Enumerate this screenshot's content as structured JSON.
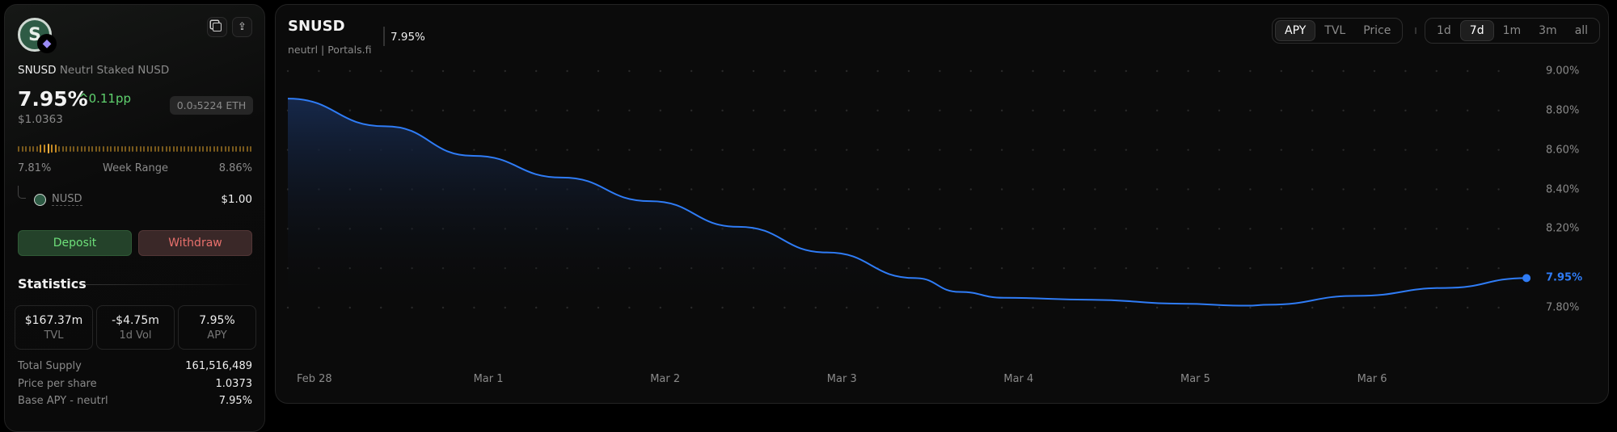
{
  "sidebar": {
    "symbol": "SNUSD",
    "name": "Neutrl Staked NUSD",
    "apy": "7.95%",
    "apy_change": "0.11pp",
    "price": "$1.0363",
    "eth_price": "0.0₃5224 ETH",
    "week_range": {
      "low": "7.81%",
      "label": "Week Range",
      "high": "8.86%",
      "current_fraction": 0.13
    },
    "underlying": {
      "symbol": "NUSD",
      "price": "$1.00"
    },
    "deposit_label": "Deposit",
    "withdraw_label": "Withdraw",
    "statistics_title": "Statistics",
    "stats": [
      {
        "value": "$167.37m",
        "label": "TVL"
      },
      {
        "value": "-$4.75m",
        "label": "1d Vol"
      },
      {
        "value": "7.95%",
        "label": "APY"
      }
    ],
    "rows": [
      {
        "key": "Total Supply",
        "value": "161,516,489"
      },
      {
        "key": "Price per share",
        "value": "1.0373"
      },
      {
        "key": "Base APY - neutrl",
        "value": "7.95%"
      }
    ],
    "icons": [
      "token-logo",
      "ethereum-icon",
      "copy-icon",
      "share-icon",
      "chevron-up-icon"
    ],
    "colors": {
      "up": "#5fd16e",
      "deposit_bg": "#24422a",
      "withdraw_bg": "#3d2a2a",
      "withdraw_text": "#e8706c",
      "range": "#c58a22"
    }
  },
  "chart_header": {
    "title": "SNUSD",
    "subtitle": "neutrl | Portals.fi",
    "current_value": "7.95%",
    "metric_tabs": [
      "APY",
      "TVL",
      "Price"
    ],
    "active_metric": "APY",
    "range_tabs": [
      "1d",
      "7d",
      "1m",
      "3m",
      "all"
    ],
    "active_range": "7d"
  },
  "chart_data": {
    "type": "area",
    "series": [
      {
        "x": [
          "Feb 28 00:00",
          "Feb 28 12:00",
          "Mar 1 00:00",
          "Mar 1 12:00",
          "Mar 2 00:00",
          "Mar 2 12:00",
          "Mar 3 00:00",
          "Mar 3 12:00",
          "Mar 3 18:00",
          "Mar 4 00:00",
          "Mar 4 12:00",
          "Mar 5 00:00",
          "Mar 5 09:00",
          "Mar 5 12:00",
          "Mar 6 00:00",
          "Mar 6 12:00",
          "Mar 6 23:00"
        ],
        "values": [
          8.86,
          8.72,
          8.57,
          8.46,
          8.34,
          8.21,
          8.08,
          7.95,
          7.88,
          7.85,
          7.84,
          7.82,
          7.81,
          7.815,
          7.86,
          7.9,
          7.95
        ]
      }
    ],
    "x_ticks": [
      "Feb 28",
      "Mar 1",
      "Mar 2",
      "Mar 3",
      "Mar 4",
      "Mar 5",
      "Mar 6"
    ],
    "y_ticks": [
      "9.00%",
      "8.80%",
      "8.60%",
      "8.40%",
      "8.20%",
      "7.80%"
    ],
    "y_tick_values": [
      9.0,
      8.8,
      8.6,
      8.4,
      8.2,
      7.8
    ],
    "last_value_label": "7.95%",
    "ylim": [
      7.8,
      9.0
    ],
    "grid": "dotted",
    "line_color": "#2f7cf6",
    "fill_color": "#16284a"
  }
}
